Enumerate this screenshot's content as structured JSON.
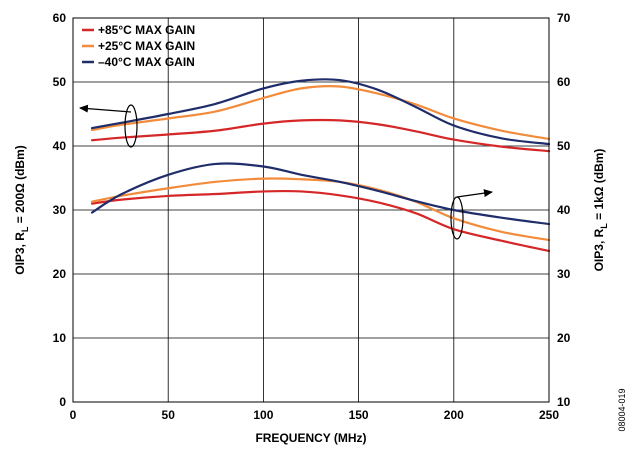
{
  "chart_data": {
    "type": "line",
    "xlabel": "FREQUENCY (MHz)",
    "ylabel_left_parts": [
      "OIP3, R",
      "L",
      " = 200Ω (dBm)"
    ],
    "ylabel_right_parts": [
      "OIP3, R",
      "L",
      " = 1kΩ (dBm)"
    ],
    "xlim": [
      0,
      250
    ],
    "ylim_left": [
      0,
      60
    ],
    "ylim_right": [
      10,
      70
    ],
    "x_ticks": [
      "0",
      "50",
      "100",
      "150",
      "200",
      "250"
    ],
    "y_ticks_left": [
      "0",
      "10",
      "20",
      "30",
      "40",
      "50",
      "60"
    ],
    "y_ticks_right": [
      "10",
      "20",
      "30",
      "40",
      "50",
      "60",
      "70"
    ],
    "grid": true,
    "legend_position": "top-left",
    "figure_id": "08004-019",
    "legend": [
      {
        "label": "+85°C MAX GAIN",
        "color": "#d62728"
      },
      {
        "label": "+25°C MAX GAIN",
        "color": "#f28c3c"
      },
      {
        "label": "–40°C MAX GAIN",
        "color": "#1f2d6b"
      }
    ],
    "series": [
      {
        "group": "R_L = 200Ω (left axis)",
        "legend_index": 0,
        "color": "#d62728",
        "x": [
          10,
          25,
          50,
          75,
          100,
          120,
          140,
          160,
          180,
          200,
          225,
          250
        ],
        "y": [
          40.9,
          41.3,
          41.8,
          42.4,
          43.5,
          44.0,
          44.0,
          43.4,
          42.3,
          41.0,
          39.9,
          39.2
        ]
      },
      {
        "group": "R_L = 200Ω (left axis)",
        "legend_index": 1,
        "color": "#f28c3c",
        "x": [
          10,
          25,
          50,
          75,
          100,
          120,
          140,
          160,
          180,
          200,
          225,
          250
        ],
        "y": [
          42.5,
          43.3,
          44.3,
          45.4,
          47.5,
          49.0,
          49.3,
          48.2,
          46.5,
          44.3,
          42.4,
          41.1
        ]
      },
      {
        "group": "R_L = 200Ω (left axis)",
        "legend_index": 2,
        "color": "#1f2d6b",
        "x": [
          10,
          25,
          50,
          75,
          100,
          120,
          140,
          160,
          180,
          200,
          225,
          250
        ],
        "y": [
          42.8,
          43.6,
          45.0,
          46.6,
          49.0,
          50.2,
          50.3,
          48.8,
          46.1,
          43.2,
          41.2,
          40.3
        ]
      },
      {
        "group": "R_L = 1kΩ (right axis)",
        "legend_index": 0,
        "color": "#d62728",
        "x": [
          10,
          25,
          50,
          75,
          100,
          120,
          140,
          160,
          180,
          200,
          225,
          250
        ],
        "y": [
          41.0,
          41.6,
          42.2,
          42.5,
          42.9,
          42.9,
          42.3,
          41.2,
          39.5,
          37.0,
          35.2,
          33.6
        ]
      },
      {
        "group": "R_L = 1kΩ (right axis)",
        "legend_index": 1,
        "color": "#f28c3c",
        "x": [
          10,
          25,
          50,
          75,
          100,
          120,
          140,
          160,
          180,
          200,
          225,
          250
        ],
        "y": [
          41.3,
          42.2,
          43.4,
          44.4,
          44.9,
          44.8,
          44.4,
          43.2,
          41.3,
          38.7,
          36.6,
          35.3
        ]
      },
      {
        "group": "R_L = 1kΩ (right axis)",
        "legend_index": 2,
        "color": "#1f2d6b",
        "x": [
          10,
          25,
          50,
          75,
          100,
          120,
          140,
          160,
          180,
          200,
          225,
          250
        ],
        "y": [
          39.6,
          42.4,
          45.5,
          47.2,
          46.8,
          45.5,
          44.4,
          43.0,
          41.4,
          40.0,
          38.8,
          37.8
        ]
      }
    ]
  }
}
